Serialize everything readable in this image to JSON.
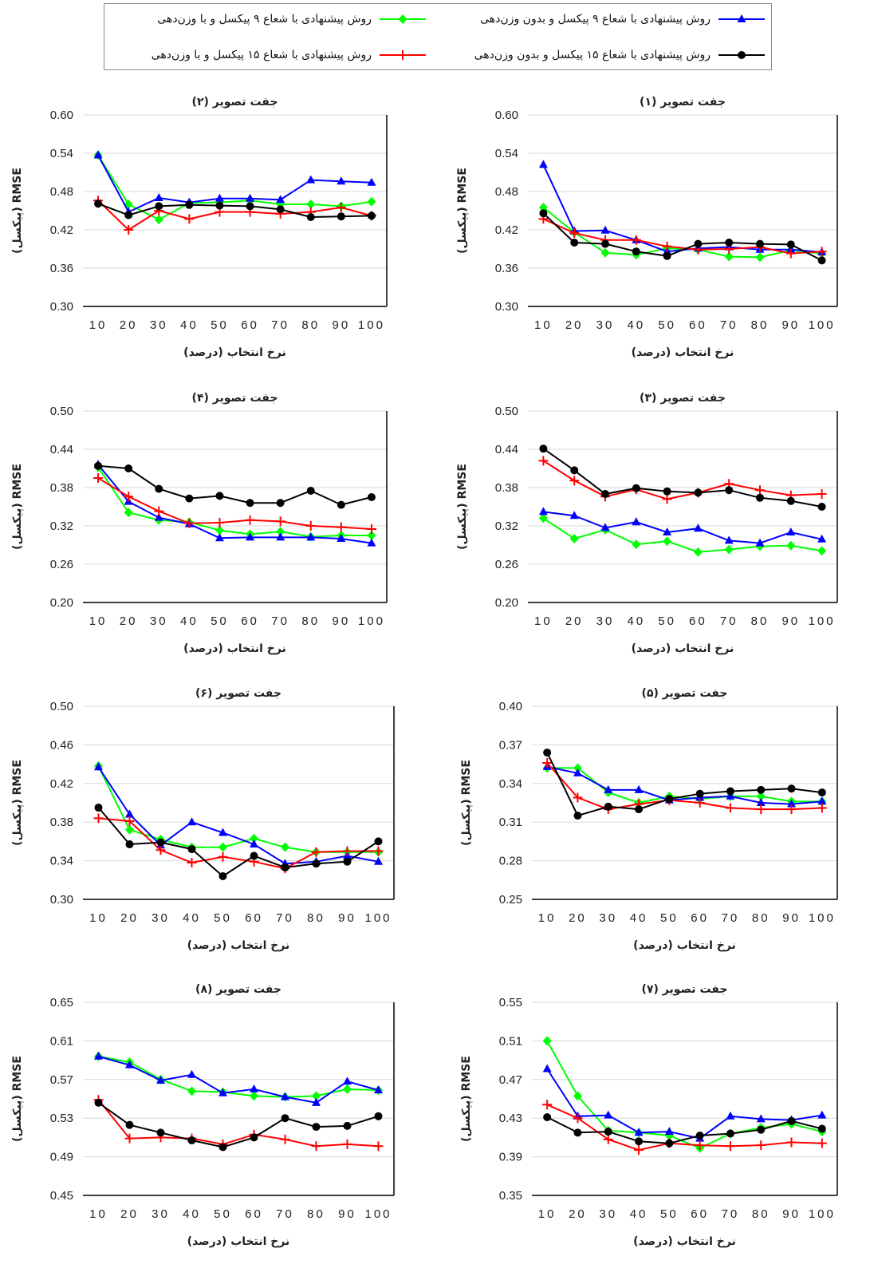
{
  "legend": [
    {
      "label": "روش پیشنهادی با شعاع ۹ پیکسل و بدون وزن‌دهی",
      "color": "#0000FF",
      "marker": "triangle"
    },
    {
      "label": "روش پیشنهادی با شعاع ۹ پیکسل و با وزن‌دهی",
      "color": "#00FF00",
      "marker": "diamond"
    },
    {
      "label": "روش پیشنهادی با شعاع ۱۵ پیکسل و بدون وزن‌دهی",
      "color": "#000000",
      "marker": "circle"
    },
    {
      "label": "روش پیشنهادی با شعاع ۱۵ پیکسل و با وزن‌دهی",
      "color": "#FF0000",
      "marker": "plus"
    }
  ],
  "chart_data": [
    {
      "type": "line",
      "title": "جفت تصویر (۱)",
      "xlabel": "نرخ انتخاب (درصد)",
      "ylabel": "RMSE (پیکسل)",
      "categories": [
        10,
        20,
        30,
        40,
        50,
        60,
        70,
        80,
        90,
        100
      ],
      "ylim": [
        0.3,
        0.6
      ],
      "yticks": [
        "0.30",
        "0.36",
        "0.42",
        "0.48",
        "0.54",
        "0.60"
      ],
      "series": [
        {
          "name": "روش پیشنهادی با شعاع ۹ پیکسل و بدون وزن‌دهی",
          "values": [
            0.522,
            0.418,
            0.419,
            0.404,
            0.386,
            0.391,
            0.393,
            0.389,
            0.389,
            0.385
          ]
        },
        {
          "name": "روش پیشنهادی با شعاع ۹ پیکسل و با وزن‌دهی",
          "values": [
            0.455,
            0.416,
            0.384,
            0.381,
            0.391,
            0.389,
            0.378,
            0.377,
            0.388,
            0.383
          ]
        },
        {
          "name": "روش پیشنهادی با شعاع ۱۵ پیکسل و بدون وزن‌دهی",
          "values": [
            0.446,
            0.4,
            0.398,
            0.386,
            0.379,
            0.398,
            0.4,
            0.398,
            0.397,
            0.372
          ]
        },
        {
          "name": "روش پیشنهادی با شعاع ۱۵ پیکسل و با وزن‌دهی",
          "values": [
            0.437,
            0.415,
            0.404,
            0.404,
            0.394,
            0.389,
            0.39,
            0.393,
            0.383,
            0.386
          ]
        }
      ]
    },
    {
      "type": "line",
      "title": "جفت تصویر (۲)",
      "xlabel": "نرخ انتخاب (درصد)",
      "ylabel": "RMSE (پیکسل)",
      "categories": [
        10,
        20,
        30,
        40,
        50,
        60,
        70,
        80,
        90,
        100
      ],
      "ylim": [
        0.3,
        0.6
      ],
      "yticks": [
        "0.30",
        "0.36",
        "0.42",
        "0.48",
        "0.54",
        "0.60"
      ],
      "series": [
        {
          "name": "روش پیشنهادی با شعاع ۹ پیکسل و بدون وزن‌دهی",
          "values": [
            0.537,
            0.448,
            0.47,
            0.463,
            0.469,
            0.469,
            0.467,
            0.498,
            0.496,
            0.494
          ]
        },
        {
          "name": "روش پیشنهادی با شعاع ۹ پیکسل و با وزن‌دهی",
          "values": [
            0.537,
            0.46,
            0.436,
            0.462,
            0.463,
            0.466,
            0.46,
            0.46,
            0.457,
            0.464
          ]
        },
        {
          "name": "روش پیشنهادی با شعاع ۱۵ پیکسل و بدون وزن‌دهی",
          "values": [
            0.461,
            0.443,
            0.457,
            0.459,
            0.458,
            0.457,
            0.452,
            0.44,
            0.441,
            0.442
          ]
        },
        {
          "name": "روش پیشنهادی با شعاع ۱۵ پیکسل و با وزن‌دهی",
          "values": [
            0.466,
            0.42,
            0.45,
            0.437,
            0.448,
            0.448,
            0.445,
            0.448,
            0.455,
            0.442
          ]
        }
      ]
    },
    {
      "type": "line",
      "title": "جفت تصویر (۳)",
      "xlabel": "نرخ انتخاب (درصد)",
      "ylabel": "RMSE (پیکسل)",
      "categories": [
        10,
        20,
        30,
        40,
        50,
        60,
        70,
        80,
        90,
        100
      ],
      "ylim": [
        0.2,
        0.5
      ],
      "yticks": [
        "0.20",
        "0.26",
        "0.32",
        "0.38",
        "0.44",
        "0.50"
      ],
      "series": [
        {
          "name": "روش پیشنهادی با شعاع ۹ پیکسل و بدون وزن‌دهی",
          "values": [
            0.342,
            0.336,
            0.317,
            0.326,
            0.31,
            0.316,
            0.297,
            0.293,
            0.31,
            0.299
          ]
        },
        {
          "name": "روش پیشنهادی با شعاع ۹ پیکسل و با وزن‌دهی",
          "values": [
            0.332,
            0.3,
            0.314,
            0.291,
            0.296,
            0.279,
            0.283,
            0.288,
            0.289,
            0.281
          ]
        },
        {
          "name": "روش پیشنهادی با شعاع ۱۵ پیکسل و بدون وزن‌دهی",
          "values": [
            0.441,
            0.407,
            0.37,
            0.379,
            0.374,
            0.372,
            0.376,
            0.364,
            0.359,
            0.35
          ]
        },
        {
          "name": "روش پیشنهادی با شعاع ۱۵ پیکسل و با وزن‌دهی",
          "values": [
            0.422,
            0.391,
            0.366,
            0.377,
            0.362,
            0.372,
            0.386,
            0.376,
            0.368,
            0.37
          ]
        }
      ]
    },
    {
      "type": "line",
      "title": "جفت تصویر (۴)",
      "xlabel": "نرخ انتخاب (درصد)",
      "ylabel": "RMSE (پیکسل)",
      "categories": [
        10,
        20,
        30,
        40,
        50,
        60,
        70,
        80,
        90,
        100
      ],
      "ylim": [
        0.2,
        0.5
      ],
      "yticks": [
        "0.20",
        "0.26",
        "0.32",
        "0.38",
        "0.44",
        "0.50"
      ],
      "series": [
        {
          "name": "روش پیشنهادی با شعاع ۹ پیکسل و بدون وزن‌دهی",
          "values": [
            0.416,
            0.358,
            0.333,
            0.323,
            0.301,
            0.302,
            0.302,
            0.302,
            0.3,
            0.293
          ]
        },
        {
          "name": "روش پیشنهادی با شعاع ۹ پیکسل و با وزن‌دهی",
          "values": [
            0.412,
            0.341,
            0.329,
            0.326,
            0.313,
            0.307,
            0.311,
            0.303,
            0.305,
            0.305
          ]
        },
        {
          "name": "روش پیشنهادی با شعاع ۱۵ پیکسل و بدون وزن‌دهی",
          "values": [
            0.414,
            0.41,
            0.378,
            0.363,
            0.367,
            0.356,
            0.356,
            0.375,
            0.353,
            0.365
          ]
        },
        {
          "name": "روش پیشنهادی با شعاع ۱۵ پیکسل و با وزن‌دهی",
          "values": [
            0.395,
            0.366,
            0.343,
            0.324,
            0.325,
            0.329,
            0.327,
            0.32,
            0.318,
            0.315
          ]
        }
      ]
    },
    {
      "type": "line",
      "title": "جفت تصویر (۵)",
      "xlabel": "نرخ انتخاب (درصد)",
      "ylabel": "RMSE (پیکسل)",
      "categories": [
        10,
        20,
        30,
        40,
        50,
        60,
        70,
        80,
        90,
        100
      ],
      "ylim": [
        0.25,
        0.4
      ],
      "yticks": [
        "0.25",
        "0.28",
        "0.31",
        "0.34",
        "0.37",
        "0.40"
      ],
      "series": [
        {
          "name": "روش پیشنهادی با شعاع ۹ پیکسل و بدون وزن‌دهی",
          "values": [
            0.353,
            0.348,
            0.335,
            0.335,
            0.327,
            0.329,
            0.33,
            0.325,
            0.324,
            0.326
          ]
        },
        {
          "name": "روش پیشنهادی با شعاع ۹ پیکسل و با وزن‌دهی",
          "values": [
            0.352,
            0.352,
            0.333,
            0.325,
            0.33,
            0.328,
            0.33,
            0.33,
            0.326,
            0.326
          ]
        },
        {
          "name": "روش پیشنهادی با شعاع ۱۵ پیکسل و بدون وزن‌دهی",
          "values": [
            0.364,
            0.315,
            0.322,
            0.32,
            0.328,
            0.332,
            0.334,
            0.335,
            0.336,
            0.333
          ]
        },
        {
          "name": "روش پیشنهادی با شعاع ۱۵ پیکسل و با وزن‌دهی",
          "values": [
            0.356,
            0.329,
            0.32,
            0.324,
            0.327,
            0.325,
            0.321,
            0.32,
            0.32,
            0.321
          ]
        }
      ]
    },
    {
      "type": "line",
      "title": "جفت تصویر (۶)",
      "xlabel": "نرخ انتخاب (درصد)",
      "ylabel": "RMSE (پیکسل)",
      "categories": [
        10,
        20,
        30,
        40,
        50,
        60,
        70,
        80,
        90,
        100
      ],
      "ylim": [
        0.3,
        0.5
      ],
      "yticks": [
        "0.30",
        "0.34",
        "0.38",
        "0.42",
        "0.46",
        "0.50"
      ],
      "series": [
        {
          "name": "روش پیشنهادی با شعاع ۹ پیکسل و بدون وزن‌دهی",
          "values": [
            0.437,
            0.388,
            0.356,
            0.38,
            0.369,
            0.357,
            0.337,
            0.339,
            0.345,
            0.339
          ]
        },
        {
          "name": "روش پیشنهادی با شعاع ۹ پیکسل و با وزن‌دهی",
          "values": [
            0.438,
            0.372,
            0.362,
            0.354,
            0.354,
            0.363,
            0.354,
            0.349,
            0.349,
            0.349
          ]
        },
        {
          "name": "روش پیشنهادی با شعاع ۱۵ پیکسل و بدون وزن‌دهی",
          "values": [
            0.395,
            0.357,
            0.359,
            0.352,
            0.324,
            0.345,
            0.333,
            0.337,
            0.339,
            0.36
          ]
        },
        {
          "name": "روش پیشنهادی با شعاع ۱۵ پیکسل و با وزن‌دهی",
          "values": [
            0.384,
            0.381,
            0.351,
            0.338,
            0.344,
            0.339,
            0.332,
            0.349,
            0.35,
            0.35
          ]
        }
      ]
    },
    {
      "type": "line",
      "title": "جفت تصویر (۷)",
      "xlabel": "نرخ انتخاب (درصد)",
      "ylabel": "RMSE (پیکسل)",
      "categories": [
        10,
        20,
        30,
        40,
        50,
        60,
        70,
        80,
        90,
        100
      ],
      "ylim": [
        0.35,
        0.55
      ],
      "yticks": [
        "0.35",
        "0.39",
        "0.43",
        "0.47",
        "0.51",
        "0.55"
      ],
      "series": [
        {
          "name": "روش پیشنهادی با شعاع ۹ پیکسل و بدون وزن‌دهی",
          "values": [
            0.481,
            0.432,
            0.433,
            0.415,
            0.416,
            0.409,
            0.432,
            0.429,
            0.428,
            0.433
          ]
        },
        {
          "name": "روش پیشنهادی با شعاع ۹ پیکسل و با وزن‌دهی",
          "values": [
            0.51,
            0.453,
            0.417,
            0.415,
            0.412,
            0.399,
            0.414,
            0.42,
            0.424,
            0.416
          ]
        },
        {
          "name": "روش پیشنهادی با شعاع ۱۵ پیکسل و بدون وزن‌دهی",
          "values": [
            0.431,
            0.415,
            0.416,
            0.406,
            0.404,
            0.412,
            0.414,
            0.418,
            0.427,
            0.419
          ]
        },
        {
          "name": "روش پیشنهادی با شعاع ۱۵ پیکسل و با وزن‌دهی",
          "values": [
            0.444,
            0.43,
            0.408,
            0.397,
            0.404,
            0.402,
            0.401,
            0.402,
            0.405,
            0.404
          ]
        }
      ]
    },
    {
      "type": "line",
      "title": "جفت تصویر (۸)",
      "xlabel": "نرخ انتخاب (درصد)",
      "ylabel": "RMSE (پیکسل)",
      "categories": [
        10,
        20,
        30,
        40,
        50,
        60,
        70,
        80,
        90,
        100
      ],
      "ylim": [
        0.45,
        0.65
      ],
      "yticks": [
        "0.45",
        "0.49",
        "0.53",
        "0.57",
        "0.61",
        "0.65"
      ],
      "series": [
        {
          "name": "روش پیشنهادی با شعاع ۹ پیکسل و بدون وزن‌دهی",
          "values": [
            0.594,
            0.585,
            0.569,
            0.575,
            0.556,
            0.56,
            0.552,
            0.546,
            0.568,
            0.559
          ]
        },
        {
          "name": "روش پیشنهادی با شعاع ۹ پیکسل و با وزن‌دهی",
          "values": [
            0.594,
            0.588,
            0.57,
            0.558,
            0.557,
            0.553,
            0.552,
            0.553,
            0.56,
            0.559
          ]
        },
        {
          "name": "روش پیشنهادی با شعاع ۱۵ پیکسل و بدون وزن‌دهی",
          "values": [
            0.546,
            0.523,
            0.515,
            0.507,
            0.5,
            0.51,
            0.53,
            0.521,
            0.522,
            0.532
          ]
        },
        {
          "name": "روش پیشنهادی با شعاع ۱۵ پیکسل و با وزن‌دهی",
          "values": [
            0.549,
            0.509,
            0.51,
            0.509,
            0.503,
            0.513,
            0.508,
            0.501,
            0.503,
            0.501
          ]
        }
      ]
    }
  ]
}
